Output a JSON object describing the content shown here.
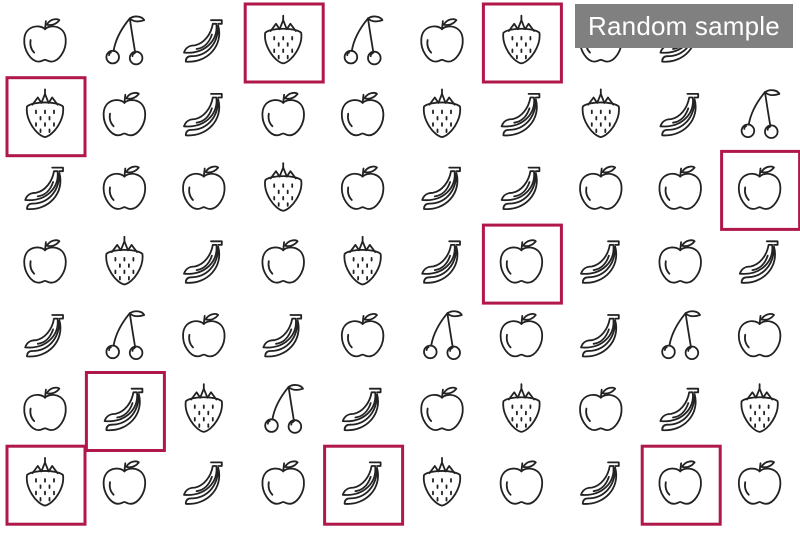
{
  "header": {
    "label": "Random sample"
  },
  "colors": {
    "outline": "#222222",
    "highlight": "#b0184a",
    "label_bg": "#808080",
    "label_text": "#ffffff"
  },
  "grid": {
    "rows": [
      [
        "apple-icon",
        "cherry-icon",
        "banana-icon",
        "strawberry-icon",
        "cherry-icon",
        "apple-icon",
        "strawberry-icon",
        "apple-icon",
        "banana-icon"
      ],
      [
        "strawberry-icon",
        "apple-icon",
        "banana-icon",
        "apple-icon",
        "apple-icon",
        "strawberry-icon",
        "banana-icon",
        "strawberry-icon",
        "banana-icon",
        "cherry-icon"
      ],
      [
        "banana-icon",
        "apple-icon",
        "apple-icon",
        "strawberry-icon",
        "apple-icon",
        "banana-icon",
        "banana-icon",
        "apple-icon",
        "apple-icon",
        "apple-icon"
      ],
      [
        "apple-icon",
        "strawberry-icon",
        "banana-icon",
        "apple-icon",
        "strawberry-icon",
        "banana-icon",
        "apple-icon",
        "banana-icon",
        "apple-icon",
        "banana-icon"
      ],
      [
        "banana-icon",
        "cherry-icon",
        "apple-icon",
        "banana-icon",
        "apple-icon",
        "cherry-icon",
        "apple-icon",
        "banana-icon",
        "cherry-icon",
        "apple-icon"
      ],
      [
        "apple-icon",
        "banana-icon",
        "strawberry-icon",
        "cherry-icon",
        "banana-icon",
        "apple-icon",
        "strawberry-icon",
        "apple-icon",
        "banana-icon",
        "strawberry-icon"
      ],
      [
        "strawberry-icon",
        "apple-icon",
        "banana-icon",
        "apple-icon",
        "banana-icon",
        "strawberry-icon",
        "apple-icon",
        "banana-icon",
        "apple-icon",
        "apple-icon"
      ]
    ],
    "selected": [
      [
        0,
        3
      ],
      [
        0,
        6
      ],
      [
        1,
        0
      ],
      [
        2,
        9
      ],
      [
        3,
        6
      ],
      [
        5,
        1
      ],
      [
        6,
        0
      ],
      [
        6,
        4
      ],
      [
        6,
        8
      ]
    ]
  }
}
